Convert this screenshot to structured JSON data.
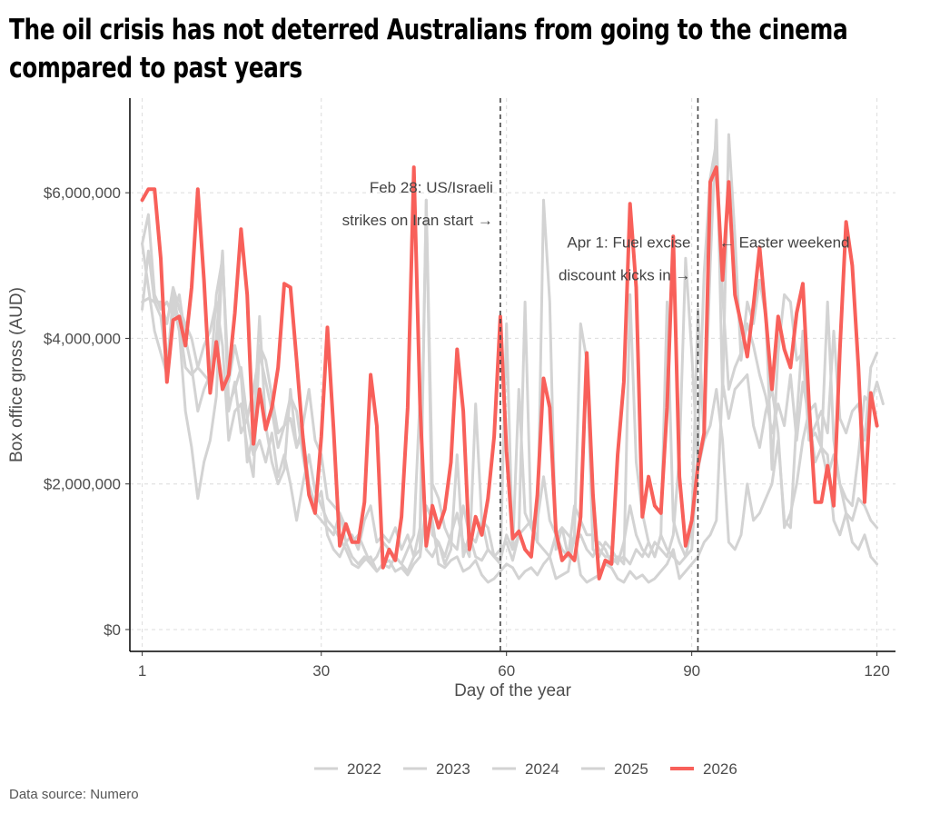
{
  "title": "The oil crisis has not deterred Australians from going to the cinema compared to past years",
  "source": "Data source: Numero",
  "colors": {
    "highlight": "#f8605a",
    "past": "#d3d3d3"
  },
  "chart_data": {
    "type": "line",
    "xlabel": "Day of the year",
    "ylabel": "Box office gross (AUD)",
    "xlim": [
      -1,
      123
    ],
    "ylim": [
      -300000,
      7300000
    ],
    "xticks": [
      1,
      30,
      60,
      90,
      120
    ],
    "yticks": [
      0,
      2000000,
      4000000,
      6000000
    ],
    "ytick_labels": [
      "$0",
      "$2,000,000",
      "$4,000,000",
      "$6,000,000"
    ],
    "grid": true,
    "legend_position": "bottom",
    "annotations": [
      {
        "x": 59,
        "text": [
          "Feb 28: US/Israeli",
          "strikes on Iran start →"
        ],
        "y": [
          6000000.0,
          5550000.0
        ],
        "anchor": "end"
      },
      {
        "x": 91,
        "text": [
          "Apr 1: Fuel excise",
          "discount kicks in →"
        ],
        "y": [
          5250000.0,
          4800000.0
        ],
        "anchor": "end"
      },
      {
        "x": 94,
        "text": [
          "← Easter weekend"
        ],
        "y": [
          5250000.0
        ],
        "anchor": "start"
      }
    ],
    "series": [
      {
        "name": "2022",
        "values": [
          4400000,
          5200000,
          4500000,
          4300000,
          3600000,
          4500000,
          4100000,
          3000000,
          2500000,
          1800000,
          2300000,
          2600000,
          3200000,
          5200000,
          3000000,
          3400000,
          2700000,
          2900000,
          2400000,
          2600000,
          2300000,
          2700000,
          2100000,
          2400000,
          2000000,
          1500000,
          2000000,
          2400000,
          1900000,
          1700000,
          1500000,
          1400000,
          1250000,
          1100000,
          900000,
          850000,
          950000,
          1000000,
          800000,
          900000,
          950000,
          800000,
          850000,
          750000,
          900000,
          1000000,
          1700000,
          1500000,
          900000,
          850000,
          950000,
          1000000,
          800000,
          850000,
          950000,
          750000,
          650000,
          700000,
          800000,
          900000,
          850000,
          700000,
          800000,
          850000,
          750000,
          900000,
          1000000,
          700000,
          750000,
          800000,
          1300000,
          750000,
          650000,
          700000,
          750000,
          900000,
          850000,
          700000,
          650000,
          800000,
          700000,
          750000,
          650000,
          700000,
          800000,
          900000,
          1100000,
          700000,
          800000,
          900000,
          1000000,
          1200000,
          1300000,
          1500000,
          3400000,
          2900000,
          3300000,
          3400000,
          3500000,
          2800000,
          2500000,
          3000000,
          3300000,
          2700000,
          1400000,
          1600000,
          2000000,
          2600000,
          3000000,
          3100000,
          2500000,
          2400000,
          1500000,
          1300000,
          1600000,
          1200000,
          1100000,
          1300000,
          1000000,
          900000
        ]
      },
      {
        "name": "2023",
        "values": [
          5300000,
          5700000,
          4600000,
          4400000,
          4500000,
          4300000,
          4600000,
          4000000,
          3600000,
          3000000,
          3300000,
          3500000,
          4000000,
          5200000,
          3100000,
          3300000,
          3600000,
          2900000,
          3300000,
          3800000,
          3400000,
          3000000,
          2500000,
          2800000,
          3200000,
          3000000,
          2400000,
          1900000,
          1600000,
          1500000,
          1400000,
          1300000,
          1600000,
          1200000,
          1300000,
          1100000,
          1500000,
          1700000,
          1200000,
          1300000,
          1200000,
          1400000,
          1100000,
          1300000,
          1000000,
          1400000,
          5900000,
          2000000,
          1800000,
          1400000,
          1200000,
          1100000,
          1700000,
          1300000,
          1200000,
          1500000,
          1100000,
          1000000,
          900000,
          4200000,
          1100000,
          1300000,
          1400000,
          1500000,
          1200000,
          5900000,
          4500000,
          1100000,
          1400000,
          1300000,
          1200000,
          1300000,
          1100000,
          1000000,
          1200000,
          1100000,
          900000,
          1000000,
          900000,
          4600000,
          2300000,
          1600000,
          1200000,
          1000000,
          1300000,
          4500000,
          1500000,
          1200000,
          1000000,
          1100000,
          2500000,
          4900000,
          6200000,
          6700000,
          4600000,
          3300000,
          3600000,
          3800000,
          4200000,
          3900000,
          3500000,
          3200000,
          2700000,
          3100000,
          2800000,
          3500000,
          2600000,
          3400000,
          2900000,
          2300000,
          2500000,
          2100000,
          2400000,
          2000000,
          1600000,
          1500000,
          1800000,
          1700000,
          1500000,
          1400000
        ]
      },
      {
        "name": "2024",
        "values": [
          4500000,
          4550000,
          4500000,
          4500000,
          4200000,
          4700000,
          4400000,
          4200000,
          4000000,
          3600000,
          3500000,
          3400000,
          4600000,
          5100000,
          3400000,
          3900000,
          3500000,
          2300000,
          2700000,
          4300000,
          2800000,
          2300000,
          2000000,
          2200000,
          3300000,
          2500000,
          2800000,
          3300000,
          2600000,
          2400000,
          1800000,
          1700000,
          1600000,
          1400000,
          1200000,
          1300000,
          1100000,
          900000,
          1000000,
          1200000,
          1100000,
          1000000,
          900000,
          1100000,
          1300000,
          3200000,
          1100000,
          1000000,
          1200000,
          900000,
          1100000,
          2400000,
          1000000,
          1300000,
          1000000,
          950000,
          1100000,
          1000000,
          1100000,
          1200000,
          950000,
          1300000,
          4500000,
          1400000,
          1200000,
          1100000,
          1000000,
          1300000,
          1100000,
          1000000,
          1300000,
          4200000,
          3700000,
          1100000,
          1000000,
          1200000,
          1100000,
          950000,
          1000000,
          900000,
          1100000,
          1000000,
          1200000,
          1000000,
          1300000,
          1100000,
          1000000,
          900000,
          1000000,
          1400000,
          4400000,
          2600000,
          2800000,
          3300000,
          2600000,
          1200000,
          1100000,
          1300000,
          2000000,
          1500000,
          1600000,
          1800000,
          2000000,
          2600000,
          1500000,
          1400000,
          2900000,
          4100000,
          2600000,
          2700000,
          2500000,
          4500000,
          2600000,
          2000000,
          1800000,
          1700000,
          2400000,
          3200000,
          3100000,
          3400000,
          3100000
        ]
      },
      {
        "name": "2025",
        "values": [
          5300000,
          4700000,
          4100000,
          3800000,
          3500000,
          4600000,
          4200000,
          3600000,
          3500000,
          3600000,
          3900000,
          4100000,
          4500000,
          3900000,
          2600000,
          3000000,
          3100000,
          2500000,
          2100000,
          3900000,
          3700000,
          3200000,
          2700000,
          2800000,
          2900000,
          2500000,
          2700000,
          2000000,
          1700000,
          1900000,
          1300000,
          1100000,
          1000000,
          1200000,
          1000000,
          900000,
          1000000,
          900000,
          800000,
          900000,
          850000,
          1000000,
          900000,
          800000,
          1000000,
          1100000,
          5900000,
          1300000,
          1200000,
          1000000,
          1300000,
          1600000,
          1200000,
          1000000,
          3100000,
          1500000,
          1400000,
          1000000,
          950000,
          1300000,
          1100000,
          3300000,
          1600000,
          1400000,
          1500000,
          2100000,
          1500000,
          1300000,
          1400000,
          1000000,
          1700000,
          1500000,
          1300000,
          1300000,
          1100000,
          1000000,
          1000000,
          900000,
          1200000,
          1700000,
          1300000,
          1100000,
          1000000,
          1200000,
          1100000,
          1000000,
          1300000,
          2400000,
          5100000,
          3800000,
          2200000,
          2600000,
          5000000,
          7000000,
          3200000,
          6800000,
          5400000,
          3700000,
          4500000,
          4200000,
          4800000,
          4300000,
          2200000,
          3800000,
          4600000,
          4500000,
          3700000,
          3800000,
          2600000,
          2800000,
          3000000,
          2700000,
          4100000,
          2900000,
          2700000,
          3000000,
          3100000,
          2600000,
          3600000,
          3800000
        ]
      },
      {
        "name": "2026",
        "highlight": true,
        "values": [
          5900000,
          6050000,
          6050000,
          5100000,
          3400000,
          4250000,
          4300000,
          3900000,
          4700000,
          6050000,
          4800000,
          3250000,
          3950000,
          3300000,
          3500000,
          4350000,
          5500000,
          4600000,
          2550000,
          3300000,
          2750000,
          3050000,
          3600000,
          4750000,
          4700000,
          3700000,
          2650000,
          1850000,
          1600000,
          2650000,
          4150000,
          2750000,
          1150000,
          1450000,
          1200000,
          1200000,
          1750000,
          3500000,
          2800000,
          850000,
          1100000,
          950000,
          1550000,
          3050000,
          6350000,
          3100000,
          1150000,
          1700000,
          1400000,
          1650000,
          2300000,
          3850000,
          3000000,
          1100000,
          1550000,
          1300000,
          1800000,
          2650000,
          4300000,
          2450000,
          1250000,
          1350000,
          1100000,
          1000000,
          1850000,
          3450000,
          3050000,
          1350000,
          950000,
          1050000,
          950000,
          1550000,
          3800000,
          1850000,
          700000,
          950000,
          900000,
          2400000,
          3400000,
          5850000,
          4700000,
          1550000,
          2100000,
          1700000,
          1600000,
          3050000,
          5400000,
          2100000,
          1150000,
          1500000,
          2250000,
          2700000,
          6150000,
          6350000,
          4800000,
          6150000,
          4600000,
          4200000,
          3750000,
          4450000,
          5250000,
          4300000,
          3300000,
          4300000,
          3850000,
          3600000,
          4350000,
          4750000,
          3100000,
          1750000,
          1750000,
          2250000,
          1700000,
          3850000,
          5600000,
          5000000,
          3600000,
          1750000,
          3250000,
          2800000
        ]
      }
    ]
  }
}
